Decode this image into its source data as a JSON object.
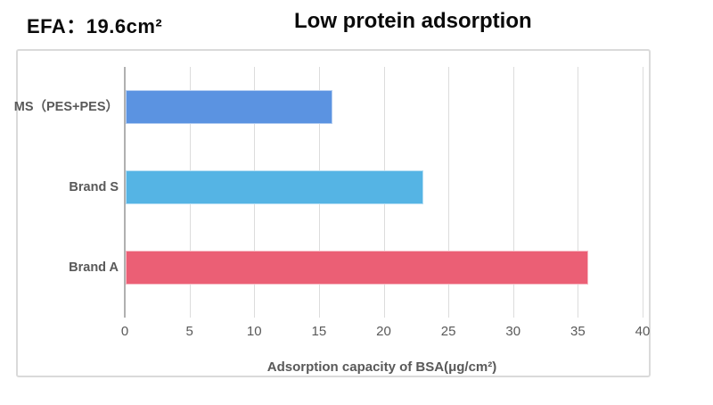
{
  "header": {
    "efa_label": "EFA：19.6cm²",
    "title": "Low protein adsorption"
  },
  "chart_data": {
    "type": "bar",
    "orientation": "horizontal",
    "title": "Low protein adsorption",
    "categories": [
      "MS（PES+PES）",
      "Brand S",
      "Brand A"
    ],
    "values": [
      16,
      23,
      35.7
    ],
    "bar_colors": [
      "#5B93E1",
      "#55B4E4",
      "#EB5F75"
    ],
    "xlabel": "Adsorption capacity of BSA(μg/cm²)",
    "ylabel": "",
    "xlim": [
      0,
      40
    ],
    "xticks": [
      0,
      5,
      10,
      15,
      20,
      25,
      30,
      35,
      40
    ],
    "grid": true,
    "legend": false,
    "text_color": "#595959",
    "gridline_color": "#DCDCDC",
    "axis_line_color": "#B0B0B0",
    "panel_border_color": "#DADADA"
  }
}
